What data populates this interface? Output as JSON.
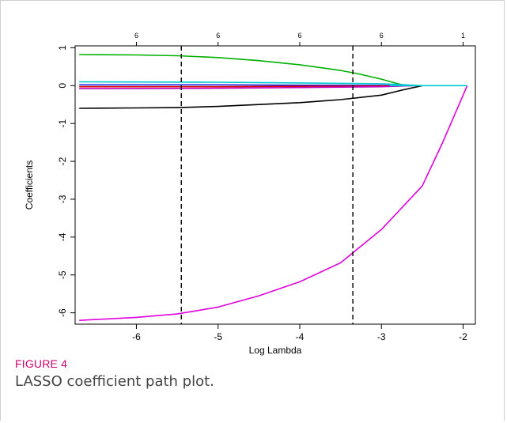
{
  "caption": {
    "figure_label": "FIGURE 4",
    "text": "LASSO coefficient path plot."
  },
  "chart_data": {
    "type": "line",
    "xlabel": "Log Lambda",
    "ylabel": "Coefficients",
    "xlim": [
      -6.75,
      -1.85
    ],
    "ylim": [
      -6.3,
      1.05
    ],
    "x_ticks": [
      -6,
      -5,
      -4,
      -3,
      -2
    ],
    "y_ticks": [
      1,
      0,
      -1,
      -2,
      -3,
      -4,
      -5,
      -6
    ],
    "top_axis": {
      "positions": [
        -6,
        -5,
        -4,
        -3,
        -2
      ],
      "labels": [
        "6",
        "6",
        "6",
        "6",
        "1"
      ]
    },
    "vlines": [
      -5.45,
      -3.35
    ],
    "grid": false,
    "series": [
      {
        "color": "#00b000",
        "x": [
          -6.7,
          -6,
          -5.5,
          -5,
          -4.5,
          -4,
          -3.5,
          -3.3,
          -3,
          -2.8,
          -2.7
        ],
        "y": [
          0.82,
          0.81,
          0.79,
          0.74,
          0.66,
          0.55,
          0.4,
          0.32,
          0.17,
          0.05,
          0
        ]
      },
      {
        "color": "#00c8d0",
        "x": [
          -6.7,
          -5,
          -4,
          -3,
          -2.7,
          -2.5
        ],
        "y": [
          0.1,
          0.09,
          0.07,
          0.05,
          0.02,
          0
        ]
      },
      {
        "color": "#2020e0",
        "x": [
          -6.7,
          -5,
          -4,
          -3,
          -2.6
        ],
        "y": [
          0.02,
          0.02,
          0.01,
          0.005,
          0
        ]
      },
      {
        "color": "#e00000",
        "x": [
          -6.7,
          -5,
          -4,
          -3,
          -2.6
        ],
        "y": [
          -0.03,
          -0.03,
          -0.02,
          -0.01,
          0
        ]
      },
      {
        "color": "#c000c0",
        "x": [
          -6.7,
          -5,
          -4,
          -3,
          -2.6
        ],
        "y": [
          -0.08,
          -0.07,
          -0.05,
          -0.03,
          0
        ]
      },
      {
        "color": "#000000",
        "x": [
          -6.7,
          -6,
          -5.5,
          -5,
          -4.5,
          -4,
          -3.5,
          -3,
          -2.75,
          -2.5
        ],
        "y": [
          -0.6,
          -0.59,
          -0.58,
          -0.55,
          -0.5,
          -0.45,
          -0.37,
          -0.25,
          -0.12,
          0
        ]
      },
      {
        "color": "#e000e0",
        "x": [
          -6.7,
          -6,
          -5.5,
          -5,
          -4.5,
          -4,
          -3.5,
          -3,
          -2.5,
          -2.25,
          -1.95
        ],
        "y": [
          -6.2,
          -6.12,
          -6.03,
          -5.85,
          -5.55,
          -5.18,
          -4.68,
          -3.8,
          -2.65,
          -1.5,
          0
        ]
      },
      {
        "color": "#00c8d0",
        "x": [
          -2.9,
          -2.5,
          -1.95
        ],
        "y": [
          0,
          0,
          0
        ]
      }
    ]
  }
}
